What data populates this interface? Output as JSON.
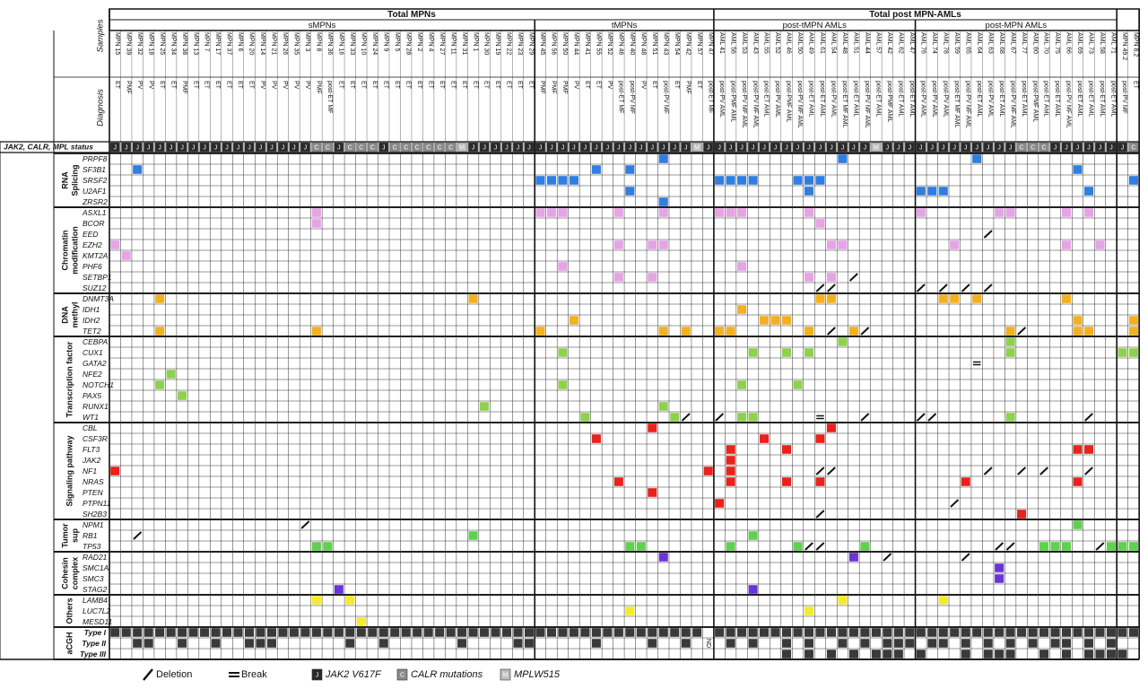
{
  "headers": {
    "total_mpns": "Total MPNs",
    "total_amls": "Total post MPN-AMLs",
    "groups": [
      "sMPNs",
      "tMPNs",
      "post-tMPN AMLs",
      "post-MPN AMLs"
    ]
  },
  "row_labels": {
    "samples": "Samples",
    "diagnosis": "Diagnosis",
    "status": "JAK2, CALR, MPL status"
  },
  "samples": [
    {
      "name": "MPN 15",
      "diagnosis": "ET",
      "status": "J"
    },
    {
      "name": "MPN 39",
      "diagnosis": "PMF",
      "status": "J"
    },
    {
      "name": "MPN 32",
      "diagnosis": "PV",
      "status": "J"
    },
    {
      "name": "MPN 18",
      "diagnosis": "PV",
      "status": "J"
    },
    {
      "name": "MPN 25",
      "diagnosis": "ET",
      "status": "J"
    },
    {
      "name": "MPN 34",
      "diagnosis": "ET",
      "status": "J"
    },
    {
      "name": "MPN 38",
      "diagnosis": "PMF",
      "status": "J"
    },
    {
      "name": "MPN 13",
      "diagnosis": "ET",
      "status": "J"
    },
    {
      "name": "MPN 7",
      "diagnosis": "ET",
      "status": "J"
    },
    {
      "name": "MPN 17",
      "diagnosis": "ET",
      "status": "J"
    },
    {
      "name": "MPN 37",
      "diagnosis": "ET",
      "status": "J"
    },
    {
      "name": "MPN 6",
      "diagnosis": "ET",
      "status": "J"
    },
    {
      "name": "MPN 20",
      "diagnosis": "ET",
      "status": "J"
    },
    {
      "name": "MPN 14",
      "diagnosis": "PV",
      "status": "J"
    },
    {
      "name": "MPN 21",
      "diagnosis": "PV",
      "status": "J"
    },
    {
      "name": "MPN 26",
      "diagnosis": "PV",
      "status": "J"
    },
    {
      "name": "MPN 35",
      "diagnosis": "PV",
      "status": "J"
    },
    {
      "name": "MPN 3",
      "diagnosis": "PV",
      "status": "J"
    },
    {
      "name": "MPN 8",
      "diagnosis": "PMF",
      "status": "C"
    },
    {
      "name": "MPN 36",
      "diagnosis": "post-ET MF",
      "status": "C"
    },
    {
      "name": "MPN 16",
      "diagnosis": "ET",
      "status": "J"
    },
    {
      "name": "MPN 33",
      "diagnosis": "ET",
      "status": "C"
    },
    {
      "name": "MPN 10",
      "diagnosis": "ET",
      "status": "C"
    },
    {
      "name": "MPN 24",
      "diagnosis": "ET",
      "status": "C"
    },
    {
      "name": "MPN 9",
      "diagnosis": "ET",
      "status": "J"
    },
    {
      "name": "MPN 5",
      "diagnosis": "ET",
      "status": "C"
    },
    {
      "name": "MPN 28",
      "diagnosis": "ET",
      "status": "C"
    },
    {
      "name": "MPN 2",
      "diagnosis": "ET",
      "status": "C"
    },
    {
      "name": "MPN 4",
      "diagnosis": "ET",
      "status": "C"
    },
    {
      "name": "MPN 27",
      "diagnosis": "ET",
      "status": "C"
    },
    {
      "name": "MPN 11",
      "diagnosis": "ET",
      "status": "C"
    },
    {
      "name": "MPN 31",
      "diagnosis": "ET",
      "status": "M"
    },
    {
      "name": "MPN 1",
      "diagnosis": "ET",
      "status": "J"
    },
    {
      "name": "MPN 30",
      "diagnosis": "ET",
      "status": "J"
    },
    {
      "name": "MPN 19",
      "diagnosis": "ET",
      "status": "J"
    },
    {
      "name": "MPN 22",
      "diagnosis": "ET",
      "status": "J"
    },
    {
      "name": "MPN 23",
      "diagnosis": "ET",
      "status": "J"
    },
    {
      "name": "MPN 29",
      "diagnosis": "ET",
      "status": "J"
    },
    {
      "name": "MPN 45",
      "diagnosis": "PMF",
      "status": "J"
    },
    {
      "name": "MPN 56",
      "diagnosis": "PMF",
      "status": "J"
    },
    {
      "name": "MPN 50",
      "diagnosis": "PMF",
      "status": "J"
    },
    {
      "name": "MPN 44",
      "diagnosis": "PV",
      "status": "J"
    },
    {
      "name": "MPN 41",
      "diagnosis": "ET",
      "status": "J"
    },
    {
      "name": "MPN 55",
      "diagnosis": "ET",
      "status": "J"
    },
    {
      "name": "MPN 52",
      "diagnosis": "PV",
      "status": "J"
    },
    {
      "name": "MPN 46",
      "diagnosis": "post-ET MF",
      "status": "J"
    },
    {
      "name": "MPN 40",
      "diagnosis": "post-PV MF",
      "status": "J"
    },
    {
      "name": "MPN 48",
      "diagnosis": "PV",
      "status": "J"
    },
    {
      "name": "MPN 51",
      "diagnosis": "ET",
      "status": "J"
    },
    {
      "name": "MPN 43",
      "diagnosis": "post-PV MF",
      "status": "J"
    },
    {
      "name": "MPN 54",
      "diagnosis": "ET",
      "status": "J"
    },
    {
      "name": "MPN 42",
      "diagnosis": "PMF",
      "status": "J"
    },
    {
      "name": "MPN 57",
      "diagnosis": "ET",
      "status": "M"
    },
    {
      "name": "MPN 47",
      "diagnosis": "post-ET MF",
      "status": "J"
    },
    {
      "name": "AML 41",
      "diagnosis": "post-PV AML",
      "status": "J"
    },
    {
      "name": "AML 56",
      "diagnosis": "post-PMF AML",
      "status": "J"
    },
    {
      "name": "AML 53",
      "diagnosis": "post-PV MF AML",
      "status": "J"
    },
    {
      "name": "AML 43",
      "diagnosis": "post-PV MF AML",
      "status": "J"
    },
    {
      "name": "AML 55",
      "diagnosis": "post-ET AML",
      "status": "J"
    },
    {
      "name": "AML 52",
      "diagnosis": "post-PV AML",
      "status": "J"
    },
    {
      "name": "AML 46",
      "diagnosis": "post-PMF AML",
      "status": "J"
    },
    {
      "name": "AML 50",
      "diagnosis": "post-PV MF AML",
      "status": "J"
    },
    {
      "name": "AML 49",
      "diagnosis": "post-ET AML",
      "status": "J"
    },
    {
      "name": "AML 61",
      "diagnosis": "post-ET AML",
      "status": "J"
    },
    {
      "name": "AML 54",
      "diagnosis": "post-PV AML",
      "status": "J"
    },
    {
      "name": "AML 48",
      "diagnosis": "post-ET MF AML",
      "status": "J"
    },
    {
      "name": "AML 51",
      "diagnosis": "post-ET AML",
      "status": "J"
    },
    {
      "name": "AML 44",
      "diagnosis": "post-PV MF AML",
      "status": "J"
    },
    {
      "name": "AML 57",
      "diagnosis": "post-ET AML",
      "status": "M"
    },
    {
      "name": "AML 42",
      "diagnosis": "post-PMF AML",
      "status": "J"
    },
    {
      "name": "AML 62",
      "diagnosis": "post-ET AML",
      "status": "J"
    },
    {
      "name": "AML 47",
      "diagnosis": "post-ET AML",
      "status": "J"
    },
    {
      "name": "AML 76",
      "diagnosis": "post-PV AML",
      "status": "J"
    },
    {
      "name": "AML 74",
      "diagnosis": "post-PV AML",
      "status": "J"
    },
    {
      "name": "AML 78",
      "diagnosis": "post-PV AML",
      "status": "J"
    },
    {
      "name": "AML 59",
      "diagnosis": "post-ET MF AML",
      "status": "J"
    },
    {
      "name": "AML 65",
      "diagnosis": "post-PV MF AML",
      "status": "J"
    },
    {
      "name": "AML 64",
      "diagnosis": "post-ET AML",
      "status": "J"
    },
    {
      "name": "AML 63",
      "diagnosis": "post-PV AML",
      "status": "J"
    },
    {
      "name": "AML 68",
      "diagnosis": "post-ET AML",
      "status": "J"
    },
    {
      "name": "AML 67",
      "diagnosis": "post-PV MF AML",
      "status": "J"
    },
    {
      "name": "AML 77",
      "diagnosis": "post-ET AML",
      "status": "C"
    },
    {
      "name": "AML 60",
      "diagnosis": "post-PMF AML",
      "status": "C"
    },
    {
      "name": "AML 70",
      "diagnosis": "post-ET AML",
      "status": "C"
    },
    {
      "name": "AML 75",
      "diagnosis": "post-ET AML",
      "status": "J"
    },
    {
      "name": "AML 66",
      "diagnosis": "post-PV MF AML",
      "status": "J"
    },
    {
      "name": "AML 69",
      "diagnosis": "post-ET AML",
      "status": "J"
    },
    {
      "name": "AML 73",
      "diagnosis": "post-ET AML",
      "status": "J"
    },
    {
      "name": "AML 58",
      "diagnosis": "post-ET AML",
      "status": "J"
    },
    {
      "name": "AML 71",
      "diagnosis": "post-ET AML",
      "status": "J"
    },
    {
      "name": "MPN 49.2",
      "diagnosis": "post-PV MF",
      "status": "J"
    },
    {
      "name": "MPN 8.2",
      "diagnosis": "ET",
      "status": "C"
    }
  ],
  "categories": [
    {
      "label": [
        "RNA",
        "Splicing"
      ],
      "genes": [
        "PRPF8",
        "SF3B1",
        "SRSF2",
        "U2AF1",
        "ZRSR2"
      ]
    },
    {
      "label": [
        "Chromatin",
        "modification"
      ],
      "genes": [
        "ASXL1",
        "BCOR",
        "EED",
        "EZH2",
        "KMT2A",
        "PHF6",
        "SETBP1",
        "SUZ12"
      ]
    },
    {
      "label": [
        "DNA",
        "methyl"
      ],
      "genes": [
        "DNMT3A",
        "IDH1",
        "IDH2",
        "TET2"
      ]
    },
    {
      "label": [
        "Transcription factor"
      ],
      "genes": [
        "CEBPA",
        "CUX1",
        "GATA2",
        "NFE2",
        "NOTCH1",
        "PAX5",
        "RUNX1",
        "WT1"
      ]
    },
    {
      "label": [
        "Signaling pathway"
      ],
      "genes": [
        "CBL",
        "CSF3R",
        "FLT3",
        "JAK2",
        "NF1",
        "NRAS",
        "PTEN",
        "PTPN11",
        "SH2B3"
      ]
    },
    {
      "label": [
        "Tumor",
        "sup"
      ],
      "genes": [
        "NPM1",
        "RB1",
        "TP53"
      ]
    },
    {
      "label": [
        "Cohesin",
        "complex"
      ],
      "genes": [
        "RAD21",
        "SMC1A",
        "SMC3",
        "STAG2"
      ]
    },
    {
      "label": [
        "Others"
      ],
      "genes": [
        "LAMB4",
        "LUC7L2",
        "MESD11"
      ]
    },
    {
      "label": [
        "aCGH"
      ],
      "genes": [
        "Type I",
        "Type II",
        "Type III"
      ]
    }
  ],
  "nd": "ND",
  "legend": {
    "deletion": "Deletion",
    "break": "Break",
    "status": [
      {
        "symbol": "J",
        "label": "JAK2 V617F"
      },
      {
        "symbol": "C",
        "label": "CALR mutations"
      },
      {
        "symbol": "M",
        "label": "MPLW515"
      }
    ]
  }
}
